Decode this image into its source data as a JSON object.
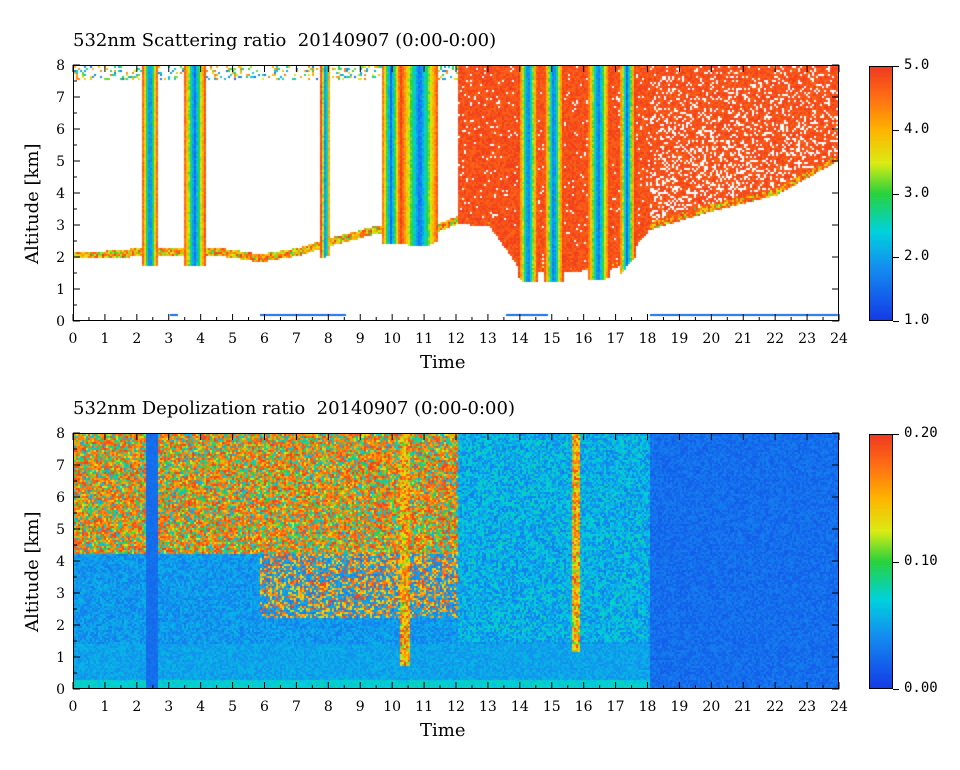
{
  "chart_data": [
    {
      "type": "heatmap",
      "title": "532nm Scattering ratio  20140907 (0:00-0:00)",
      "xlabel": "Time",
      "ylabel": "Altitude [km]",
      "xlim": [
        0,
        24
      ],
      "ylim": [
        0,
        8
      ],
      "x_ticks": [
        "0",
        "1",
        "2",
        "3",
        "4",
        "5",
        "6",
        "7",
        "8",
        "9",
        "10",
        "11",
        "12",
        "13",
        "14",
        "15",
        "16",
        "17",
        "18",
        "19",
        "20",
        "21",
        "22",
        "23",
        "24"
      ],
      "y_ticks": [
        "0",
        "1",
        "2",
        "3",
        "4",
        "5",
        "6",
        "7",
        "8"
      ],
      "colorbar": {
        "min": 1.0,
        "max": 5.0,
        "tick_labels": [
          "1.0",
          "2.0",
          "3.0",
          "4.0",
          "5.0"
        ],
        "tick_values": [
          1.0,
          2.0,
          3.0,
          4.0,
          5.0
        ]
      },
      "background_value_color": "#ffffff",
      "features": {
        "cloud_base_km": [
          {
            "t": 0.0,
            "z": 2.0
          },
          {
            "t": 1.0,
            "z": 2.0
          },
          {
            "t": 2.2,
            "z": 2.1
          },
          {
            "t": 3.0,
            "z": 2.1
          },
          {
            "t": 4.5,
            "z": 2.1
          },
          {
            "t": 5.8,
            "z": 1.9
          },
          {
            "t": 7.0,
            "z": 2.1
          },
          {
            "t": 8.0,
            "z": 2.4
          },
          {
            "t": 9.5,
            "z": 2.8
          },
          {
            "t": 11.0,
            "z": 2.7
          },
          {
            "t": 12.0,
            "z": 3.1
          },
          {
            "t": 13.0,
            "z": 3.0
          },
          {
            "t": 14.0,
            "z": 1.6
          },
          {
            "t": 15.5,
            "z": 1.6
          },
          {
            "t": 17.0,
            "z": 1.7
          },
          {
            "t": 18.0,
            "z": 2.9
          },
          {
            "t": 20.0,
            "z": 3.5
          },
          {
            "t": 22.0,
            "z": 4.0
          },
          {
            "t": 23.8,
            "z": 5.0
          }
        ],
        "high_signal_region": {
          "t_start": 12.0,
          "t_end": 24.0,
          "value": 5.0
        }
      }
    },
    {
      "type": "heatmap",
      "title": "532nm Depolization ratio  20140907 (0:00-0:00)",
      "xlabel": "Time",
      "ylabel": "Altitude [km]",
      "xlim": [
        0,
        24
      ],
      "ylim": [
        0,
        8
      ],
      "x_ticks": [
        "0",
        "1",
        "2",
        "3",
        "4",
        "5",
        "6",
        "7",
        "8",
        "9",
        "10",
        "11",
        "12",
        "13",
        "14",
        "15",
        "16",
        "17",
        "18",
        "19",
        "20",
        "21",
        "22",
        "23",
        "24"
      ],
      "y_ticks": [
        "0",
        "1",
        "2",
        "3",
        "4",
        "5",
        "6",
        "7",
        "8"
      ],
      "colorbar": {
        "min": 0.0,
        "max": 0.2,
        "tick_labels": [
          "0.00",
          "0.10",
          "0.20"
        ],
        "tick_values": [
          0.0,
          0.1,
          0.2
        ]
      },
      "features": {
        "high_depol_region": {
          "t_start": 0.0,
          "t_end": 12.0,
          "z_min": 4.5,
          "z_max": 8.0,
          "value": 0.2
        },
        "background_value": 0.02,
        "surface_layer_value": 0.06
      }
    }
  ]
}
